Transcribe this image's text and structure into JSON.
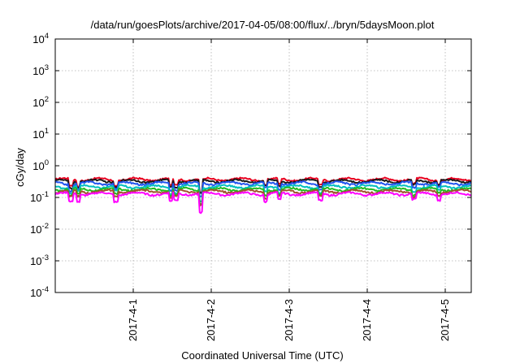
{
  "chart_data": {
    "type": "line",
    "title": "/data/run/goesPlots/archive/2017-04-05/08:00/flux/../bryn/5daysMoon.plot",
    "xlabel": "Coordinated Universal Time (UTC)",
    "ylabel": "cGy/day",
    "yscale": "log",
    "ylim": [
      0.0001,
      10000
    ],
    "xlim": [
      "2017-03-31 00:00",
      "2017-04-05 08:00"
    ],
    "grid": true,
    "y_ticks": [
      {
        "base": "10",
        "exp": "-4"
      },
      {
        "base": "10",
        "exp": "-3"
      },
      {
        "base": "10",
        "exp": "-2"
      },
      {
        "base": "10",
        "exp": "-1"
      },
      {
        "base": "10",
        "exp": "0"
      },
      {
        "base": "10",
        "exp": "1"
      },
      {
        "base": "10",
        "exp": "2"
      },
      {
        "base": "10",
        "exp": "3"
      },
      {
        "base": "10",
        "exp": "4"
      }
    ],
    "x_ticks": [
      "2017-4-1",
      "2017-4-2",
      "2017-4-3",
      "2017-4-4",
      "2017-4-5"
    ],
    "series": [
      {
        "color": "#e8001f",
        "baseline": 0.37,
        "dip_depth": 0.55
      },
      {
        "color": "#1a1a1a",
        "baseline": 0.33,
        "dip_depth": 0.6
      },
      {
        "color": "#2255ee",
        "baseline": 0.28,
        "dip_depth": 0.5
      },
      {
        "color": "#00bfbf",
        "baseline": 0.22,
        "dip_depth": 0.55
      },
      {
        "color": "#22bb22",
        "baseline": 0.18,
        "dip_depth": 0.6
      },
      {
        "color": "#a0522d",
        "baseline": 0.155,
        "dip_depth": 0.6
      },
      {
        "color": "#ff00ff",
        "baseline": 0.13,
        "dip_depth": 0.35
      }
    ],
    "dips": [
      {
        "day": 0.2,
        "factor": 0.55
      },
      {
        "day": 0.3,
        "factor": 0.6
      },
      {
        "day": 0.78,
        "factor": 0.6
      },
      {
        "day": 1.48,
        "factor": 0.55
      },
      {
        "day": 1.55,
        "factor": 0.6
      },
      {
        "day": 1.87,
        "factor": 0.25
      },
      {
        "day": 2.7,
        "factor": 0.6
      },
      {
        "day": 2.87,
        "factor": 0.6
      },
      {
        "day": 3.4,
        "factor": 0.6
      },
      {
        "day": 4.6,
        "factor": 0.65
      },
      {
        "day": 4.92,
        "factor": 0.7
      }
    ]
  }
}
